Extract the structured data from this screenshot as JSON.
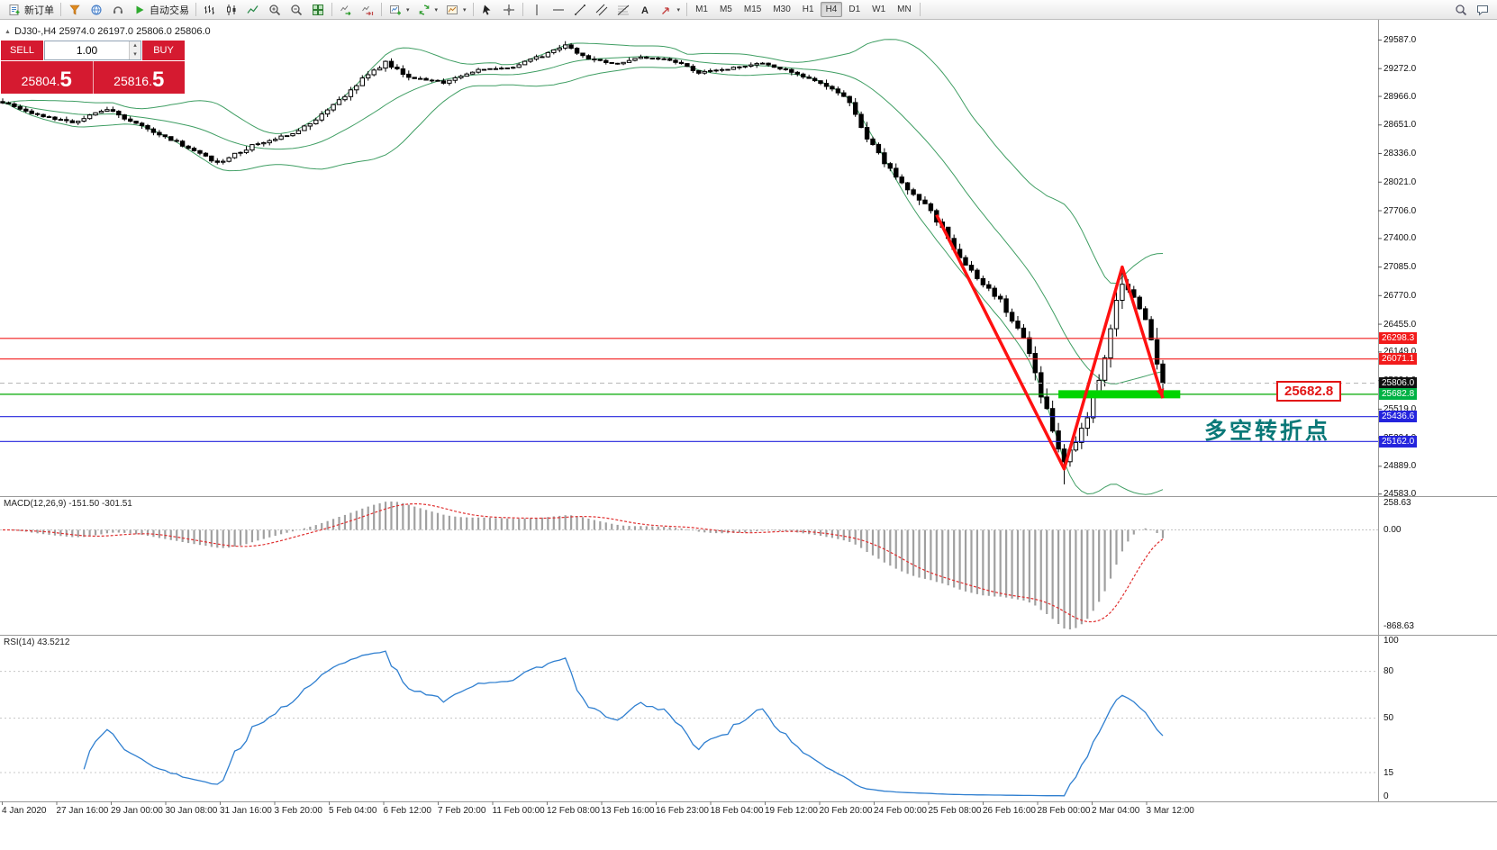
{
  "toolbar": {
    "new_order": "新订单",
    "autotrading": "自动交易",
    "timeframes": [
      "M1",
      "M5",
      "M15",
      "M30",
      "H1",
      "H4",
      "D1",
      "W1",
      "MN"
    ],
    "active_timeframe": "H4"
  },
  "trade_panel": {
    "sell_label": "SELL",
    "buy_label": "BUY",
    "volume": "1.00",
    "sell_price_main": "25804.",
    "sell_price_big": "5",
    "buy_price_main": "25816.",
    "buy_price_big": "5"
  },
  "symbol_info": "DJ30-,H4  25974.0 26197.0 25806.0 25806.0",
  "annotations": {
    "price_flag": "25682.8",
    "turning_point": "多空转折点",
    "turning_point_color": "#0a7878"
  },
  "indicators": {
    "macd_label": "MACD(12,26,9) -151.50 -301.51",
    "macd_axis": [
      "258.63",
      "0.00",
      "-868.63"
    ],
    "rsi_label": "RSI(14) 43.5212",
    "rsi_axis": [
      "100",
      "80",
      "50",
      "15",
      "0"
    ],
    "rsi_levels": [
      80,
      50,
      15
    ]
  },
  "price_axis": {
    "labels": [
      "29587.0",
      "29272.0",
      "28966.0",
      "28651.0",
      "28336.0",
      "28021.0",
      "27706.0",
      "27400.0",
      "27085.0",
      "26770.0",
      "26455.0",
      "26149.0",
      "25834.0",
      "25519.0",
      "25204.0",
      "24889.0",
      "24583.0"
    ],
    "tags": [
      {
        "text": "26298.3",
        "price": 26298.3,
        "color": "#f21b1b"
      },
      {
        "text": "26071.1",
        "price": 26071.1,
        "color": "#f21b1b"
      },
      {
        "text": "25806.0",
        "price": 25806.0,
        "color": "#101010"
      },
      {
        "text": "25682.8",
        "price": 25682.8,
        "color": "#00b244"
      },
      {
        "text": "25436.6",
        "price": 25436.6,
        "color": "#2424dd"
      },
      {
        "text": "25162.0",
        "price": 25162.0,
        "color": "#2424dd"
      }
    ]
  },
  "time_axis": [
    "4 Jan 2020",
    "27 Jan 16:00",
    "29 Jan 00:00",
    "30 Jan 08:00",
    "31 Jan 16:00",
    "3 Feb 20:00",
    "5 Feb 04:00",
    "6 Feb 12:00",
    "7 Feb 20:00",
    "11 Feb 00:00",
    "12 Feb 08:00",
    "13 Feb 16:00",
    "16 Feb 23:00",
    "18 Feb 04:00",
    "19 Feb 12:00",
    "20 Feb 20:00",
    "24 Feb 00:00",
    "25 Feb 08:00",
    "26 Feb 16:00",
    "28 Feb 00:00",
    "2 Mar 04:00",
    "3 Mar 12:00"
  ],
  "chart_data": {
    "type": "candlestick",
    "symbol": "DJ30-",
    "timeframe": "H4",
    "ohlc_last": {
      "open": 25974.0,
      "high": 26197.0,
      "low": 25806.0,
      "close": 25806.0
    },
    "price_range_visible": [
      24583.0,
      29587.0
    ],
    "visible_high": 29587.0,
    "visible_low": 24683.0,
    "candles_count": 201,
    "close_anchors": [
      [
        0,
        28900
      ],
      [
        6,
        28760
      ],
      [
        12,
        28680
      ],
      [
        18,
        28820
      ],
      [
        24,
        28640
      ],
      [
        30,
        28460
      ],
      [
        37,
        28230
      ],
      [
        43,
        28420
      ],
      [
        50,
        28560
      ],
      [
        56,
        28800
      ],
      [
        62,
        29150
      ],
      [
        66,
        29340
      ],
      [
        70,
        29180
      ],
      [
        76,
        29120
      ],
      [
        82,
        29260
      ],
      [
        88,
        29290
      ],
      [
        94,
        29440
      ],
      [
        97,
        29520
      ],
      [
        101,
        29380
      ],
      [
        106,
        29320
      ],
      [
        110,
        29400
      ],
      [
        115,
        29370
      ],
      [
        120,
        29230
      ],
      [
        126,
        29280
      ],
      [
        131,
        29330
      ],
      [
        136,
        29240
      ],
      [
        141,
        29120
      ],
      [
        145,
        28980
      ],
      [
        149,
        28520
      ],
      [
        152,
        28230
      ],
      [
        156,
        27950
      ],
      [
        160,
        27700
      ],
      [
        164,
        27300
      ],
      [
        168,
        26950
      ],
      [
        172,
        26720
      ],
      [
        176,
        26280
      ],
      [
        179,
        25700
      ],
      [
        181,
        25260
      ],
      [
        183,
        24940
      ],
      [
        185,
        25150
      ],
      [
        187,
        25420
      ],
      [
        189,
        25850
      ],
      [
        191,
        26380
      ],
      [
        193,
        26940
      ],
      [
        195,
        26760
      ],
      [
        197,
        26520
      ],
      [
        199,
        25980
      ],
      [
        200,
        25806
      ]
    ],
    "bollinger": {
      "period": 20,
      "deviation": 2
    },
    "hlines": [
      {
        "price": 26298.3,
        "color": "#f21b1b"
      },
      {
        "price": 26071.1,
        "color": "#f21b1b"
      },
      {
        "price": 25682.8,
        "color": "#00a800"
      },
      {
        "price": 25436.6,
        "color": "#2424dd"
      },
      {
        "price": 25162.0,
        "color": "#2424dd"
      }
    ],
    "green_segment": {
      "price": 25682.8,
      "from": 182,
      "to": 203,
      "color": "#00d400"
    },
    "red_zigzag": {
      "color": "#ff1111",
      "points": [
        [
          161,
          27660
        ],
        [
          183,
          24860
        ],
        [
          193,
          27085
        ],
        [
          200,
          25640
        ]
      ]
    },
    "macd": {
      "fast": 12,
      "slow": 26,
      "signal": 9,
      "last_main": -151.5,
      "last_signal": -301.51
    },
    "rsi": {
      "period": 14,
      "last": 43.5212
    }
  }
}
